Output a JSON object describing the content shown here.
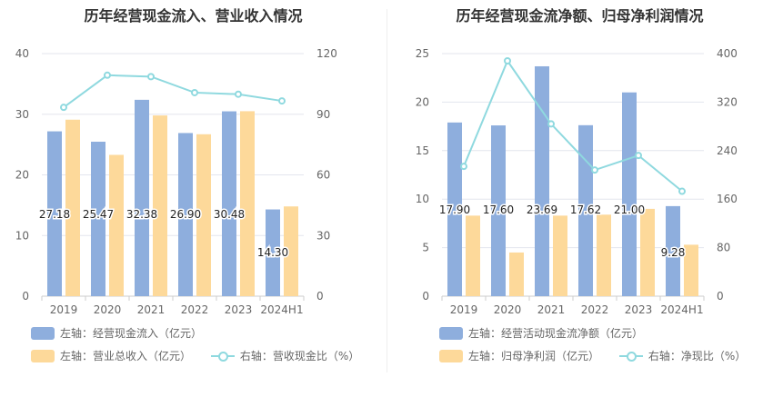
{
  "charts": {
    "left": {
      "title": "历年经营现金流入、营业收入情况"
    },
    "right": {
      "title": "历年经营现金流净额、归母净利润情况"
    }
  },
  "legend": {
    "left": {
      "bar1": "左轴：经营现金流入（亿元）",
      "bar2": "左轴：营业总收入（亿元）",
      "line": "右轴：营收现金比（%）"
    },
    "right": {
      "bar1": "左轴：经营活动现金流净额（亿元）",
      "bar2": "左轴：归母净利润（亿元）",
      "line": "右轴：净现比（%）"
    }
  },
  "colors": {
    "bar1": "#8eaedd",
    "bar2": "#fdd99a",
    "line": "#8fd9df",
    "grid": "#e3e6ee",
    "axis_text": "#666666"
  },
  "chart_data": [
    {
      "type": "bar",
      "title": "历年经营现金流入、营业收入情况",
      "categories": [
        "2019",
        "2020",
        "2021",
        "2022",
        "2023",
        "2024H1"
      ],
      "ylim_left": [
        0,
        40
      ],
      "ylim_right": [
        0,
        120
      ],
      "yticks_left": [
        0,
        10,
        20,
        30,
        40
      ],
      "yticks_right": [
        0,
        30,
        60,
        90,
        120
      ],
      "grid": true,
      "legend_position": "bottom",
      "series": [
        {
          "name": "左轴：经营现金流入（亿元）",
          "axis": "left",
          "type": "bar",
          "values": [
            27.18,
            25.47,
            32.38,
            26.9,
            30.48,
            14.3
          ],
          "labels": [
            "27.18",
            "25.47",
            "32.38",
            "26.90",
            "30.48",
            "14.30"
          ]
        },
        {
          "name": "左轴：营业总收入（亿元）",
          "axis": "left",
          "type": "bar",
          "values": [
            29.1,
            23.3,
            29.8,
            26.7,
            30.5,
            14.8
          ]
        },
        {
          "name": "右轴：营收现金比（%）",
          "axis": "right",
          "type": "line",
          "values": [
            93.4,
            109.3,
            108.6,
            100.7,
            99.9,
            96.6
          ]
        }
      ]
    },
    {
      "type": "bar",
      "title": "历年经营现金流净额、归母净利润情况",
      "categories": [
        "2019",
        "2020",
        "2021",
        "2022",
        "2023",
        "2024H1"
      ],
      "ylim_left": [
        0,
        25
      ],
      "ylim_right": [
        0,
        400
      ],
      "yticks_left": [
        0,
        5,
        10,
        15,
        20,
        25
      ],
      "yticks_right": [
        0,
        80,
        160,
        240,
        320,
        400
      ],
      "grid": true,
      "legend_position": "bottom",
      "series": [
        {
          "name": "左轴：经营活动现金流净额（亿元）",
          "axis": "left",
          "type": "bar",
          "values": [
            17.9,
            17.6,
            23.69,
            17.62,
            21.0,
            9.28
          ],
          "labels": [
            "17.90",
            "17.60",
            "23.69",
            "17.62",
            "21.00",
            "9.28"
          ]
        },
        {
          "name": "左轴：归母净利润（亿元）",
          "axis": "left",
          "type": "bar",
          "values": [
            8.3,
            4.5,
            8.3,
            8.4,
            9.0,
            5.3
          ]
        },
        {
          "name": "右轴：净现比（%）",
          "axis": "right",
          "type": "line",
          "values": [
            214,
            388,
            284,
            208,
            232,
            173
          ]
        }
      ]
    }
  ]
}
